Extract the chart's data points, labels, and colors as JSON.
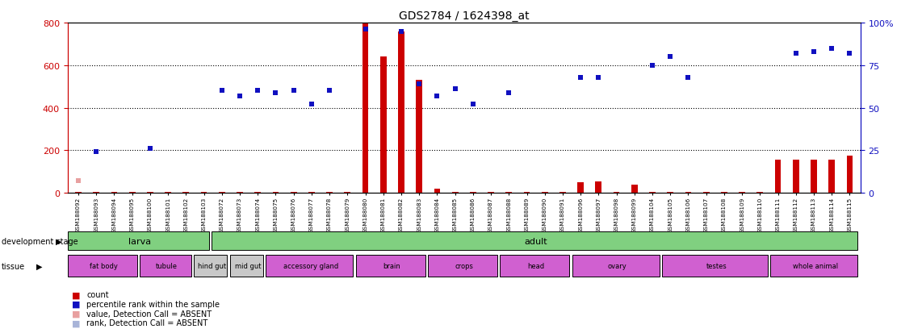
{
  "title": "GDS2784 / 1624398_at",
  "samples": [
    "GSM188092",
    "GSM188093",
    "GSM188094",
    "GSM188095",
    "GSM188100",
    "GSM188101",
    "GSM188102",
    "GSM188103",
    "GSM188072",
    "GSM188073",
    "GSM188074",
    "GSM188075",
    "GSM188076",
    "GSM188077",
    "GSM188078",
    "GSM188079",
    "GSM188080",
    "GSM188081",
    "GSM188082",
    "GSM188083",
    "GSM188084",
    "GSM188085",
    "GSM188086",
    "GSM188087",
    "GSM188088",
    "GSM188089",
    "GSM188090",
    "GSM188091",
    "GSM188096",
    "GSM188097",
    "GSM188098",
    "GSM188099",
    "GSM188104",
    "GSM188105",
    "GSM188106",
    "GSM188107",
    "GSM188108",
    "GSM188109",
    "GSM188110",
    "GSM188111",
    "GSM188112",
    "GSM188113",
    "GSM188114",
    "GSM188115"
  ],
  "counts": [
    5,
    5,
    5,
    5,
    5,
    5,
    5,
    5,
    5,
    5,
    5,
    5,
    5,
    5,
    5,
    5,
    800,
    640,
    760,
    530,
    20,
    5,
    5,
    5,
    5,
    5,
    5,
    5,
    50,
    55,
    5,
    40,
    5,
    5,
    5,
    5,
    5,
    5,
    5,
    155,
    155,
    155,
    155,
    175
  ],
  "ranks_pct": [
    null,
    24,
    null,
    null,
    26,
    null,
    null,
    null,
    60,
    57,
    60,
    59,
    60,
    52,
    60,
    null,
    96,
    null,
    95,
    64,
    57,
    61,
    52,
    null,
    59,
    null,
    null,
    null,
    68,
    68,
    null,
    null,
    75,
    80,
    68,
    null,
    null,
    null,
    null,
    null,
    82,
    83,
    85,
    82
  ],
  "ranks_absent_pct": [
    null,
    null,
    null,
    null,
    null,
    null,
    null,
    null,
    null,
    null,
    null,
    null,
    null,
    null,
    null,
    null,
    null,
    null,
    null,
    null,
    null,
    null,
    null,
    null,
    null,
    null,
    null,
    null,
    null,
    null,
    null,
    null,
    null,
    null,
    null,
    null,
    null,
    null,
    null,
    null,
    null,
    null,
    null,
    null
  ],
  "values_absent": [
    7,
    null,
    null,
    null,
    null,
    null,
    null,
    null,
    null,
    null,
    null,
    null,
    null,
    null,
    null,
    null,
    null,
    null,
    null,
    null,
    null,
    null,
    null,
    null,
    null,
    null,
    null,
    null,
    null,
    null,
    null,
    null,
    null,
    null,
    null,
    null,
    null,
    null,
    null,
    null,
    null,
    null,
    null,
    null
  ],
  "rank_absent_pct": [
    null,
    null,
    null,
    null,
    null,
    null,
    null,
    null,
    null,
    null,
    null,
    null,
    null,
    null,
    null,
    null,
    null,
    null,
    null,
    null,
    null,
    null,
    null,
    null,
    null,
    null,
    null,
    null,
    null,
    null,
    null,
    null,
    null,
    null,
    null,
    null,
    null,
    null,
    null,
    null,
    null,
    null,
    null,
    null
  ],
  "dev_stages": [
    {
      "label": "larva",
      "start": 0,
      "end": 8
    },
    {
      "label": "adult",
      "start": 8,
      "end": 44
    }
  ],
  "tissue_groups": [
    {
      "label": "fat body",
      "start": 0,
      "end": 4,
      "purple": true
    },
    {
      "label": "tubule",
      "start": 4,
      "end": 7,
      "purple": true
    },
    {
      "label": "hind gut",
      "start": 7,
      "end": 9,
      "purple": false
    },
    {
      "label": "mid gut",
      "start": 9,
      "end": 11,
      "purple": false
    },
    {
      "label": "accessory gland",
      "start": 11,
      "end": 16,
      "purple": true
    },
    {
      "label": "brain",
      "start": 16,
      "end": 20,
      "purple": true
    },
    {
      "label": "crops",
      "start": 20,
      "end": 24,
      "purple": true
    },
    {
      "label": "head",
      "start": 24,
      "end": 28,
      "purple": true
    },
    {
      "label": "ovary",
      "start": 28,
      "end": 33,
      "purple": true
    },
    {
      "label": "testes",
      "start": 33,
      "end": 39,
      "purple": true
    },
    {
      "label": "whole animal",
      "start": 39,
      "end": 44,
      "purple": true
    }
  ],
  "ylim_left": [
    0,
    800
  ],
  "yticks_left": [
    0,
    200,
    400,
    600,
    800
  ],
  "yticks_right": [
    0,
    25,
    50,
    75,
    100
  ],
  "bar_color": "#cc0000",
  "dot_color": "#1010c0",
  "absent_value_color": "#e8a0a0",
  "absent_rank_color": "#a8b4d8",
  "bg_color": "#ffffff",
  "green_color": "#80d080",
  "purple_color": "#d060d0",
  "gray_color": "#c8c8c8"
}
